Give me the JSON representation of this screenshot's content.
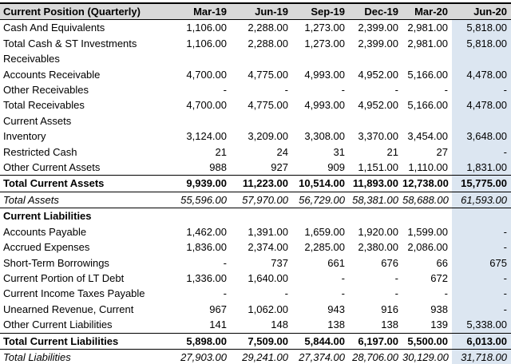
{
  "colors": {
    "header_bg": "#d9d9d9",
    "highlight_column_bg": "#dce6f1",
    "border": "#000000",
    "text": "#000000"
  },
  "chart_data": {
    "type": "table",
    "title": "Current Position (Quarterly)",
    "columns": [
      "Mar-19",
      "Jun-19",
      "Sep-19",
      "Dec-19",
      "Mar-20",
      "Jun-20"
    ],
    "highlighted_column": "Jun-20",
    "rows": [
      {
        "label": "Cash And Equivalents",
        "style": "normal",
        "values": [
          "1,106.00",
          "2,288.00",
          "1,273.00",
          "2,399.00",
          "2,981.00",
          "5,818.00"
        ]
      },
      {
        "label": "Total Cash & ST Investments",
        "style": "normal",
        "values": [
          "1,106.00",
          "2,288.00",
          "1,273.00",
          "2,399.00",
          "2,981.00",
          "5,818.00"
        ]
      },
      {
        "label": "Receivables",
        "style": "section",
        "values": [
          "",
          "",
          "",
          "",
          "",
          ""
        ]
      },
      {
        "label": "Accounts Receivable",
        "style": "normal",
        "values": [
          "4,700.00",
          "4,775.00",
          "4,993.00",
          "4,952.00",
          "5,166.00",
          "4,478.00"
        ]
      },
      {
        "label": "Other Receivables",
        "style": "normal",
        "values": [
          "-",
          "-",
          "-",
          "-",
          "-",
          "-"
        ]
      },
      {
        "label": "Total Receivables",
        "style": "normal",
        "values": [
          "4,700.00",
          "4,775.00",
          "4,993.00",
          "4,952.00",
          "5,166.00",
          "4,478.00"
        ]
      },
      {
        "label": "Current Assets",
        "style": "section",
        "values": [
          "",
          "",
          "",
          "",
          "",
          ""
        ]
      },
      {
        "label": "Inventory",
        "style": "normal",
        "values": [
          "3,124.00",
          "3,209.00",
          "3,308.00",
          "3,370.00",
          "3,454.00",
          "3,648.00"
        ]
      },
      {
        "label": "Restricted Cash",
        "style": "normal",
        "values": [
          "21",
          "24",
          "31",
          "21",
          "27",
          "-"
        ]
      },
      {
        "label": "Other Current Assets",
        "style": "normal",
        "values": [
          "988",
          "927",
          "909",
          "1,151.00",
          "1,110.00",
          "1,831.00"
        ]
      },
      {
        "label": "Total Current Assets",
        "style": "total",
        "values": [
          "9,939.00",
          "11,223.00",
          "10,514.00",
          "11,893.00",
          "12,738.00",
          "15,775.00"
        ]
      },
      {
        "label": "Total Assets",
        "style": "grand",
        "values": [
          "55,596.00",
          "57,970.00",
          "56,729.00",
          "58,381.00",
          "58,688.00",
          "61,593.00"
        ]
      },
      {
        "label": "Current Liabilities",
        "style": "sectionBold",
        "values": [
          "",
          "",
          "",
          "",
          "",
          ""
        ]
      },
      {
        "label": "Accounts Payable",
        "style": "normal",
        "values": [
          "1,462.00",
          "1,391.00",
          "1,659.00",
          "1,920.00",
          "1,599.00",
          "-"
        ]
      },
      {
        "label": "Accrued Expenses",
        "style": "normal",
        "values": [
          "1,836.00",
          "2,374.00",
          "2,285.00",
          "2,380.00",
          "2,086.00",
          "-"
        ]
      },
      {
        "label": "Short-Term Borrowings",
        "style": "normal",
        "values": [
          "-",
          "737",
          "661",
          "676",
          "66",
          "675"
        ]
      },
      {
        "label": "Current Portion of LT Debt",
        "style": "normal",
        "values": [
          "1,336.00",
          "1,640.00",
          "-",
          "-",
          "672",
          "-"
        ]
      },
      {
        "label": "Current Income Taxes Payable",
        "style": "normal",
        "values": [
          "-",
          "-",
          "-",
          "-",
          "-",
          "-"
        ]
      },
      {
        "label": "Unearned Revenue, Current",
        "style": "normal",
        "values": [
          "967",
          "1,062.00",
          "943",
          "916",
          "938",
          "-"
        ]
      },
      {
        "label": "Other Current Liabilities",
        "style": "normal",
        "values": [
          "141",
          "148",
          "138",
          "138",
          "139",
          "5,338.00"
        ]
      },
      {
        "label": "Total Current Liabilities",
        "style": "total",
        "values": [
          "5,898.00",
          "7,509.00",
          "5,844.00",
          "6,197.00",
          "5,500.00",
          "6,013.00"
        ]
      },
      {
        "label": "Total Liabilities",
        "style": "grand",
        "values": [
          "27,903.00",
          "29,241.00",
          "27,374.00",
          "28,706.00",
          "30,129.00",
          "31,718.00"
        ]
      }
    ]
  }
}
